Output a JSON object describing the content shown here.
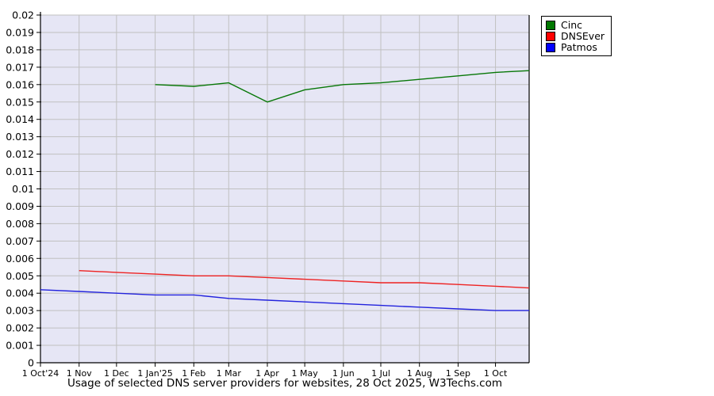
{
  "chart_data": {
    "type": "line",
    "title": "Usage of selected DNS server providers for websites, 28 Oct 2025, W3Techs.com",
    "x_axis": {
      "unit": "days since 1 Oct 2024",
      "range_days": [
        0,
        392
      ],
      "tick_days": [
        0,
        31,
        61,
        92,
        123,
        151,
        182,
        212,
        243,
        273,
        304,
        335,
        365
      ],
      "tick_labels": [
        "1 Oct'24",
        "1 Nov",
        "1 Dec",
        "1 Jan'25",
        "1 Feb",
        "1 Mar",
        "1 Apr",
        "1 May",
        "1 Jun",
        "1 Jul",
        "1 Aug",
        "1 Sep",
        "1 Oct"
      ]
    },
    "y_axis": {
      "min": 0,
      "max": 0.02,
      "step": 0.001,
      "tick_labels": [
        "0",
        "0.001",
        "0.002",
        "0.003",
        "0.004",
        "0.005",
        "0.006",
        "0.007",
        "0.008",
        "0.009",
        "0.01",
        "0.011",
        "0.012",
        "0.013",
        "0.014",
        "0.015",
        "0.016",
        "0.017",
        "0.018",
        "0.019",
        "0.02"
      ]
    },
    "series": [
      {
        "name": "Cinc",
        "line_color": "#077707",
        "legend_color": "#007700",
        "x_days": [
          92,
          123,
          151,
          182,
          212,
          243,
          273,
          304,
          335,
          365,
          392
        ],
        "values": [
          0.016,
          0.0159,
          0.0161,
          0.015,
          0.0157,
          0.016,
          0.0161,
          0.0163,
          0.0165,
          0.0167,
          0.0168
        ]
      },
      {
        "name": "DNSEver",
        "line_color": "#ee2222",
        "legend_color": "#ff0000",
        "x_days": [
          31,
          61,
          92,
          123,
          151,
          182,
          212,
          243,
          273,
          304,
          335,
          365,
          392
        ],
        "values": [
          0.0053,
          0.0052,
          0.0051,
          0.005,
          0.005,
          0.0049,
          0.0048,
          0.0047,
          0.0046,
          0.0046,
          0.0045,
          0.0044,
          0.0043
        ]
      },
      {
        "name": "Patmos",
        "line_color": "#2222dd",
        "legend_color": "#0000ff",
        "x_days": [
          0,
          31,
          61,
          92,
          123,
          151,
          182,
          212,
          243,
          273,
          304,
          335,
          365,
          392
        ],
        "values": [
          0.0042,
          0.0041,
          0.004,
          0.0039,
          0.0039,
          0.0037,
          0.0036,
          0.0035,
          0.0034,
          0.0033,
          0.0032,
          0.0031,
          0.003,
          0.003
        ]
      }
    ],
    "legend_position": "top-right",
    "grid": true,
    "colors": {
      "plot_bg": "#e6e6f5",
      "gridline": "#c0c0c0",
      "axis": "#000000",
      "text": "#000000",
      "outer_bg": "#ffffff"
    }
  }
}
